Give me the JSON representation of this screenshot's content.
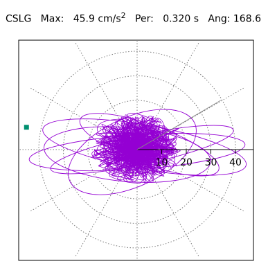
{
  "header": {
    "station": "CSLG",
    "max_label": "Max:",
    "max_value": "45.9 cm/s",
    "max_exp": "2",
    "per_label": "Per:",
    "per_value": "0.320 s",
    "ang_label": "Ang:",
    "ang_value": "168.6"
  },
  "chart_data": {
    "type": "polar-orbit",
    "title": "",
    "radial_ticks": [
      10,
      20,
      30,
      40
    ],
    "radial_tick_labels": [
      "10",
      "20",
      "30",
      "40"
    ],
    "rmax": 50,
    "grid": true,
    "max_amplitude": 45.9,
    "direction_angle_deg": 168.6,
    "orbit_color": "#9400d3",
    "marker_color": "#009070",
    "orbit_loops": [
      {
        "rx": 44,
        "ry": 7,
        "rot": -4,
        "cx": 0,
        "cy": 1
      },
      {
        "rx": 42,
        "ry": 9,
        "rot": 10,
        "cx": 3,
        "cy": -1
      },
      {
        "rx": 38,
        "ry": 6,
        "rot": -12,
        "cx": 2,
        "cy": 0
      },
      {
        "rx": 34,
        "ry": 11,
        "rot": 5,
        "cx": -4,
        "cy": 2
      },
      {
        "rx": 30,
        "ry": 8,
        "rot": 20,
        "cx": 5,
        "cy": -2
      },
      {
        "rx": 28,
        "ry": 14,
        "rot": -25,
        "cx": -2,
        "cy": 1
      }
    ]
  }
}
